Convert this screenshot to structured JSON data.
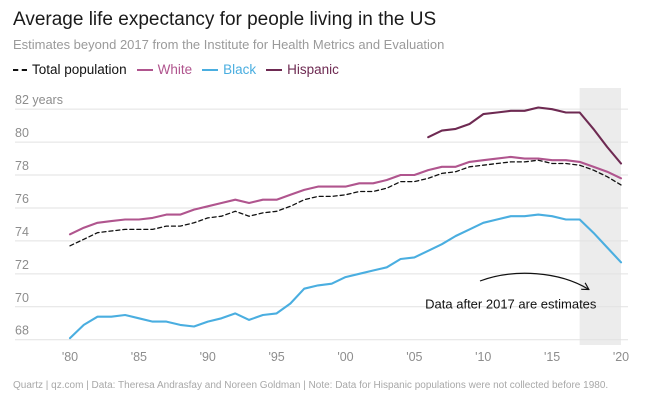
{
  "header": {
    "title": "Average life expectancy for people living in the US",
    "subtitle": "Estimates beyond 2017 from the Institute for Health Metrics and Evaluation"
  },
  "footer": {
    "source": "Quartz | qz.com | Data: Theresa Andrasfay and Noreen Goldman | Note: Data for Hispanic populations were not collected before 1980."
  },
  "colors": {
    "total": "#111111",
    "white": "#b0558e",
    "black": "#4aaee0",
    "hispanic": "#6e2a52",
    "grid": "#e2e2e2",
    "estimate_band": "#ececec"
  },
  "chart_data": {
    "type": "line",
    "title": "Average life expectancy for people living in the US",
    "subtitle": "Estimates beyond 2017 from the Institute for Health Metrics and Evaluation",
    "xlabel": "",
    "ylabel": "years",
    "xlim": [
      1979,
      2020.4
    ],
    "ylim": [
      67.8,
      82.8
    ],
    "y_unit_label": "years",
    "y_ticks": [
      68,
      70,
      72,
      74,
      76,
      78,
      80,
      82
    ],
    "x_ticks": [
      {
        "value": 1980,
        "label": "'80"
      },
      {
        "value": 1985,
        "label": "'85"
      },
      {
        "value": 1990,
        "label": "'90"
      },
      {
        "value": 1995,
        "label": "'95"
      },
      {
        "value": 2000,
        "label": "'00"
      },
      {
        "value": 2005,
        "label": "'05"
      },
      {
        "value": 2010,
        "label": "'10"
      },
      {
        "value": 2015,
        "label": "'15"
      },
      {
        "value": 2020,
        "label": "'20"
      }
    ],
    "grid": true,
    "legend_position": "top-left",
    "estimate_region": {
      "from": 2017,
      "to": 2020
    },
    "annotation": {
      "text": "Data after 2017 are estimates",
      "year": 2012,
      "value": 69.9
    },
    "series": [
      {
        "name": "Total population",
        "key": "total",
        "style": "dashed",
        "x": [
          1980,
          1981,
          1982,
          1983,
          1984,
          1985,
          1986,
          1987,
          1988,
          1989,
          1990,
          1991,
          1992,
          1993,
          1994,
          1995,
          1996,
          1997,
          1998,
          1999,
          2000,
          2001,
          2002,
          2003,
          2004,
          2005,
          2006,
          2007,
          2008,
          2009,
          2010,
          2011,
          2012,
          2013,
          2014,
          2015,
          2016,
          2017,
          2018,
          2019,
          2020
        ],
        "values": [
          73.7,
          74.1,
          74.5,
          74.6,
          74.7,
          74.7,
          74.7,
          74.9,
          74.9,
          75.1,
          75.4,
          75.5,
          75.8,
          75.5,
          75.7,
          75.8,
          76.1,
          76.5,
          76.7,
          76.7,
          76.8,
          77.0,
          77.0,
          77.2,
          77.6,
          77.6,
          77.8,
          78.1,
          78.2,
          78.5,
          78.6,
          78.7,
          78.8,
          78.8,
          78.9,
          78.7,
          78.7,
          78.6,
          78.3,
          77.9,
          77.4
        ]
      },
      {
        "name": "White",
        "key": "white",
        "style": "solid",
        "x": [
          1980,
          1981,
          1982,
          1983,
          1984,
          1985,
          1986,
          1987,
          1988,
          1989,
          1990,
          1991,
          1992,
          1993,
          1994,
          1995,
          1996,
          1997,
          1998,
          1999,
          2000,
          2001,
          2002,
          2003,
          2004,
          2005,
          2006,
          2007,
          2008,
          2009,
          2010,
          2011,
          2012,
          2013,
          2014,
          2015,
          2016,
          2017,
          2018,
          2019,
          2020
        ],
        "values": [
          74.4,
          74.8,
          75.1,
          75.2,
          75.3,
          75.3,
          75.4,
          75.6,
          75.6,
          75.9,
          76.1,
          76.3,
          76.5,
          76.3,
          76.5,
          76.5,
          76.8,
          77.1,
          77.3,
          77.3,
          77.3,
          77.5,
          77.5,
          77.7,
          78.0,
          78.0,
          78.3,
          78.5,
          78.5,
          78.8,
          78.9,
          79.0,
          79.1,
          79.0,
          79.0,
          78.9,
          78.9,
          78.8,
          78.5,
          78.2,
          77.8
        ]
      },
      {
        "name": "Black",
        "key": "black",
        "style": "solid",
        "x": [
          1980,
          1981,
          1982,
          1983,
          1984,
          1985,
          1986,
          1987,
          1988,
          1989,
          1990,
          1991,
          1992,
          1993,
          1994,
          1995,
          1996,
          1997,
          1998,
          1999,
          2000,
          2001,
          2002,
          2003,
          2004,
          2005,
          2006,
          2007,
          2008,
          2009,
          2010,
          2011,
          2012,
          2013,
          2014,
          2015,
          2016,
          2017,
          2018,
          2019,
          2020
        ],
        "values": [
          68.1,
          68.9,
          69.4,
          69.4,
          69.5,
          69.3,
          69.1,
          69.1,
          68.9,
          68.8,
          69.1,
          69.3,
          69.6,
          69.2,
          69.5,
          69.6,
          70.2,
          71.1,
          71.3,
          71.4,
          71.8,
          72.0,
          72.2,
          72.4,
          72.9,
          73.0,
          73.4,
          73.8,
          74.3,
          74.7,
          75.1,
          75.3,
          75.5,
          75.5,
          75.6,
          75.5,
          75.3,
          75.3,
          74.5,
          73.6,
          72.7
        ]
      },
      {
        "name": "Hispanic",
        "key": "hispanic",
        "style": "solid",
        "x": [
          2006,
          2007,
          2008,
          2009,
          2010,
          2011,
          2012,
          2013,
          2014,
          2015,
          2016,
          2017,
          2018,
          2019,
          2020
        ],
        "values": [
          80.3,
          80.7,
          80.8,
          81.1,
          81.7,
          81.8,
          81.9,
          81.9,
          82.1,
          82.0,
          81.8,
          81.8,
          80.8,
          79.7,
          78.7
        ]
      }
    ]
  }
}
